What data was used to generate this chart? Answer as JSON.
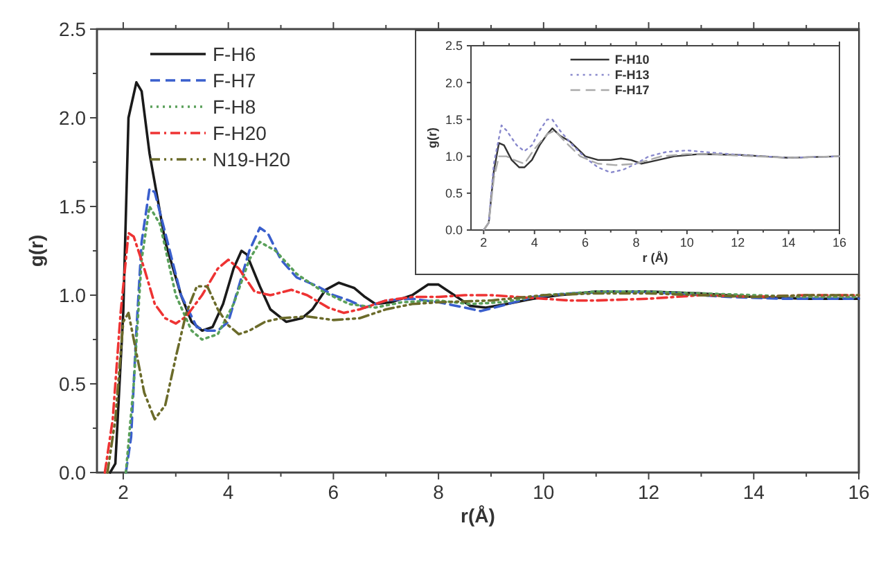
{
  "chart_data": [
    {
      "type": "line",
      "xlabel": "r(Å)",
      "ylabel": "g(r)",
      "xlim": [
        1.5,
        16
      ],
      "ylim": [
        0,
        2.5
      ],
      "xticks": [
        2,
        {
          "value": 3,
          "label": null
        },
        4,
        {
          "value": 5,
          "label": null
        },
        6,
        {
          "value": 7,
          "label": null
        },
        8,
        {
          "value": 9,
          "label": null
        },
        10,
        {
          "value": 11,
          "label": null
        },
        12,
        {
          "value": 13,
          "label": null
        },
        14,
        {
          "value": 15,
          "label": null
        },
        16
      ],
      "yticks": [
        {
          "value": 0,
          "label": "0.0"
        },
        {
          "value": 0.25,
          "label": null
        },
        {
          "value": 0.5,
          "label": "0.5"
        },
        {
          "value": 0.75,
          "label": null
        },
        {
          "value": 1,
          "label": "1.0"
        },
        {
          "value": 1.25,
          "label": null
        },
        {
          "value": 1.5,
          "label": "1.5"
        },
        {
          "value": 1.75,
          "label": null
        },
        {
          "value": 2,
          "label": "2.0"
        },
        {
          "value": 2.25,
          "label": null
        },
        {
          "value": 2.5,
          "label": "2.5"
        }
      ],
      "legend": "top left",
      "grid": false,
      "marker": "none",
      "series": [
        {
          "name": "F-H6",
          "color": "#1a1a1a",
          "line_style": "solid",
          "x": [
            1.75,
            1.85,
            2.0,
            2.1,
            2.25,
            2.35,
            2.5,
            2.8,
            3.1,
            3.3,
            3.5,
            3.7,
            3.9,
            4.1,
            4.25,
            4.35,
            4.6,
            4.8,
            5.1,
            5.4,
            5.6,
            5.85,
            6.1,
            6.4,
            6.6,
            6.8,
            7.1,
            7.5,
            7.8,
            8.0,
            8.3,
            8.6,
            8.9,
            9.3,
            9.8,
            10.3,
            11,
            12,
            13,
            14,
            15,
            16
          ],
          "values": [
            0,
            0.05,
            0.9,
            2.0,
            2.2,
            2.15,
            1.8,
            1.3,
            1.0,
            0.85,
            0.8,
            0.82,
            0.95,
            1.15,
            1.25,
            1.23,
            1.05,
            0.92,
            0.85,
            0.87,
            0.92,
            1.03,
            1.07,
            1.04,
            0.99,
            0.95,
            0.96,
            1.0,
            1.06,
            1.06,
            1.0,
            0.94,
            0.93,
            0.95,
            0.98,
            1.0,
            1.02,
            1.02,
            1.01,
            0.99,
            0.98,
            0.98
          ]
        },
        {
          "name": "F-H7",
          "color": "#3a5fcd",
          "line_style": "dashed",
          "x": [
            2.05,
            2.15,
            2.25,
            2.35,
            2.5,
            2.6,
            2.8,
            3.1,
            3.4,
            3.6,
            3.8,
            4.0,
            4.2,
            4.4,
            4.6,
            4.75,
            5.0,
            5.3,
            5.7,
            6.0,
            6.3,
            6.6,
            7.0,
            7.5,
            8.0,
            8.5,
            8.8,
            9.2,
            9.8,
            10.5,
            11.5,
            12.5,
            13.5,
            14.5,
            15.5,
            16
          ],
          "values": [
            0,
            0.2,
            0.8,
            1.3,
            1.6,
            1.58,
            1.35,
            1.0,
            0.82,
            0.8,
            0.8,
            0.85,
            1.05,
            1.25,
            1.38,
            1.35,
            1.2,
            1.1,
            1.05,
            1.0,
            0.97,
            0.93,
            0.97,
            0.98,
            0.96,
            0.93,
            0.91,
            0.94,
            0.99,
            1.01,
            1.02,
            1.01,
            0.99,
            0.98,
            0.98,
            0.98
          ]
        },
        {
          "name": "F-H8",
          "color": "#5aa05a",
          "line_style": "dotted",
          "x": [
            2.05,
            2.2,
            2.35,
            2.5,
            2.7,
            3.0,
            3.3,
            3.5,
            3.8,
            4.1,
            4.4,
            4.6,
            4.9,
            5.3,
            5.8,
            6.3,
            6.8,
            7.3,
            8,
            8.6,
            9.2,
            10,
            11,
            12,
            13,
            14,
            15,
            16
          ],
          "values": [
            0,
            0.5,
            1.2,
            1.5,
            1.4,
            1.0,
            0.8,
            0.75,
            0.78,
            0.95,
            1.2,
            1.3,
            1.25,
            1.12,
            1.02,
            0.95,
            0.93,
            0.96,
            0.97,
            0.95,
            0.96,
            1.0,
            1.02,
            1.02,
            1.01,
            1.0,
            0.99,
            0.99
          ]
        },
        {
          "name": "F-H20",
          "color": "#ee3333",
          "line_style": "dashdot",
          "x": [
            1.65,
            1.8,
            1.95,
            2.1,
            2.2,
            2.4,
            2.6,
            2.8,
            3.0,
            3.2,
            3.5,
            3.8,
            4.0,
            4.2,
            4.5,
            4.8,
            5.2,
            5.5,
            5.9,
            6.2,
            6.5,
            7.0,
            7.5,
            8.0,
            8.5,
            9,
            9.5,
            10,
            10.5,
            11,
            12,
            13,
            14,
            15,
            16
          ],
          "values": [
            0,
            0.3,
            0.9,
            1.35,
            1.33,
            1.15,
            0.95,
            0.87,
            0.84,
            0.88,
            1.0,
            1.15,
            1.2,
            1.15,
            1.02,
            1.0,
            1.03,
            1.0,
            0.93,
            0.9,
            0.92,
            0.97,
            0.99,
            0.99,
            1.0,
            1.0,
            0.99,
            0.98,
            0.97,
            0.97,
            0.98,
            1.0,
            0.99,
            1.0,
            1.0
          ]
        },
        {
          "name": "N19-H20",
          "color": "#6b6b2a",
          "line_style": "dashdotdot",
          "x": [
            1.7,
            1.85,
            2.0,
            2.1,
            2.2,
            2.4,
            2.6,
            2.8,
            3.0,
            3.2,
            3.4,
            3.6,
            3.8,
            4.0,
            4.2,
            4.4,
            4.7,
            5.0,
            5.5,
            6,
            6.5,
            7,
            7.5,
            8,
            9,
            10,
            11,
            12,
            13,
            14,
            15,
            16
          ],
          "values": [
            0,
            0.3,
            0.85,
            0.9,
            0.75,
            0.45,
            0.3,
            0.38,
            0.65,
            0.9,
            1.05,
            1.05,
            0.92,
            0.83,
            0.78,
            0.8,
            0.85,
            0.87,
            0.88,
            0.86,
            0.87,
            0.92,
            0.95,
            0.96,
            0.97,
            1.0,
            1.01,
            1.01,
            1.0,
            0.99,
            1.0,
            1.0
          ]
        }
      ]
    },
    {
      "type": "line",
      "xlabel": "r (Å)",
      "ylabel": "g(r)",
      "xlim": [
        1.5,
        16
      ],
      "ylim": [
        0,
        2.5
      ],
      "xticks": [
        2,
        {
          "value": 3,
          "label": null
        },
        4,
        {
          "value": 5,
          "label": null
        },
        6,
        {
          "value": 7,
          "label": null
        },
        8,
        {
          "value": 9,
          "label": null
        },
        10,
        {
          "value": 11,
          "label": null
        },
        12,
        {
          "value": 13,
          "label": null
        },
        14,
        {
          "value": 15,
          "label": null
        },
        16
      ],
      "yticks": [
        {
          "value": 0,
          "label": "0.0"
        },
        {
          "value": 0.5,
          "label": "0.5"
        },
        {
          "value": 1,
          "label": "1.0"
        },
        {
          "value": 1.5,
          "label": "1.5"
        },
        {
          "value": 2,
          "label": "2.0"
        },
        {
          "value": 2.5,
          "label": "2.5"
        }
      ],
      "legend": "top left",
      "grid": false,
      "marker": "none",
      "series": [
        {
          "name": "F-H10",
          "color": "#333333",
          "line_style": "solid",
          "x": [
            2.0,
            2.2,
            2.4,
            2.6,
            2.8,
            3.1,
            3.4,
            3.6,
            3.9,
            4.2,
            4.5,
            4.7,
            5.0,
            5.4,
            5.7,
            6.0,
            6.5,
            7.0,
            7.4,
            7.8,
            8.2,
            8.6,
            9.5,
            10.5,
            12,
            13,
            14,
            15,
            16
          ],
          "values": [
            0,
            0.1,
            0.8,
            1.18,
            1.15,
            0.95,
            0.85,
            0.85,
            0.95,
            1.15,
            1.3,
            1.38,
            1.28,
            1.2,
            1.1,
            1.0,
            0.95,
            0.95,
            0.97,
            0.95,
            0.9,
            0.93,
            1.0,
            1.03,
            1.02,
            1.0,
            0.98,
            0.99,
            1.0
          ]
        },
        {
          "name": "F-H13",
          "color": "#8888cc",
          "line_style": "dotted",
          "x": [
            2.0,
            2.2,
            2.4,
            2.7,
            2.9,
            3.3,
            3.6,
            3.9,
            4.2,
            4.5,
            4.7,
            5.0,
            5.5,
            6.0,
            6.5,
            7.0,
            7.5,
            8.0,
            8.5,
            9.2,
            10,
            11,
            12,
            13,
            14,
            15,
            16
          ],
          "values": [
            0,
            0.1,
            0.9,
            1.42,
            1.35,
            1.15,
            1.07,
            1.15,
            1.35,
            1.5,
            1.5,
            1.35,
            1.15,
            0.98,
            0.85,
            0.78,
            0.82,
            0.9,
            1.0,
            1.06,
            1.08,
            1.05,
            1.02,
            1.0,
            0.98,
            0.99,
            1.0
          ]
        },
        {
          "name": "F-H17",
          "color": "#aaaaaa",
          "line_style": "dashed",
          "x": [
            2.0,
            2.2,
            2.4,
            2.6,
            2.9,
            3.2,
            3.6,
            4,
            4.5,
            4.8,
            5.2,
            5.8,
            6.5,
            7.2,
            8,
            9,
            10,
            11,
            12,
            14,
            16
          ],
          "values": [
            0,
            0.1,
            0.7,
            1.0,
            1.0,
            0.95,
            0.9,
            1.1,
            1.3,
            1.35,
            1.2,
            1.0,
            0.9,
            0.88,
            0.9,
            1.0,
            1.03,
            1.03,
            1.01,
            0.98,
            1.0
          ]
        }
      ]
    }
  ]
}
